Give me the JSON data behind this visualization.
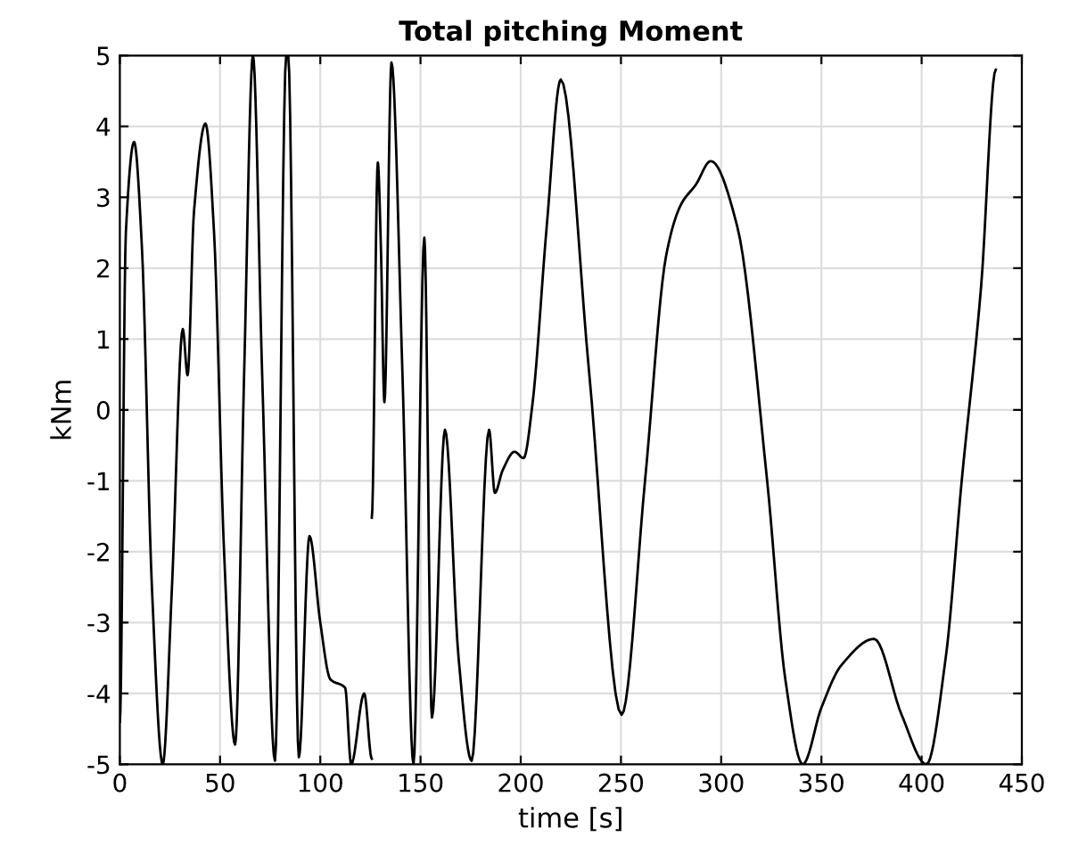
{
  "chart_data": {
    "type": "line",
    "title": "Total pitching Moment",
    "xlabel": "time [s]",
    "ylabel": "kNm",
    "xlim": [
      0,
      450
    ],
    "xticks": [
      0,
      50,
      100,
      150,
      200,
      250,
      300,
      350,
      400,
      450
    ],
    "ylim": [
      -5,
      5
    ],
    "yticks": [
      -5,
      -4,
      -3,
      -2,
      -1,
      0,
      1,
      2,
      3,
      4,
      5
    ],
    "grid": true,
    "series": [
      {
        "color": "#000000",
        "x": [
          0,
          3,
          7.1,
          11,
          16,
          21.4,
          26,
          31.4,
          33.8,
          37,
          42.7,
          47,
          52,
          57.5,
          62,
          66.4,
          71,
          77.4,
          83,
          84,
          89.3,
          94.6,
          100,
          105,
          112.4,
          115.4,
          121.9,
          125.7
        ],
        "values": [
          -4.4,
          2.5,
          3.78,
          2.3,
          -2.5,
          -5,
          -2.5,
          1.14,
          0.49,
          2.8,
          4.04,
          2.5,
          -2,
          -4.72,
          0.5,
          5,
          0.5,
          -4.95,
          5,
          5,
          -4.9,
          -1.78,
          -3,
          -3.8,
          -3.92,
          -5,
          -4.0,
          -4.92
        ]
      },
      {
        "color": "#000000",
        "x": [
          125.7,
          128.7,
          130.2,
          132,
          135.5,
          141,
          146.5,
          151.9,
          155.7,
          162.2,
          169,
          175.5,
          184.2,
          187.1,
          191,
          196.9,
          201.4,
          205.8,
          213,
          220,
          234,
          250.3,
          262,
          272.5,
          280,
          287.4,
          294.8,
          308,
          323,
          332,
          340.7,
          350,
          360,
          376.3,
          390,
          402.4,
          412,
          420,
          429.7,
          437
        ],
        "values": [
          -1.52,
          3.49,
          2.34,
          0.11,
          4.9,
          0.5,
          -5,
          2.43,
          -4.34,
          -0.28,
          -3.5,
          -4.95,
          -0.28,
          -1.17,
          -0.85,
          -0.59,
          -0.68,
          0.07,
          2.6,
          4.66,
          0.57,
          -4.3,
          -1,
          2.17,
          2.9,
          3.18,
          3.51,
          2.59,
          -1.02,
          -3.8,
          -5,
          -4.2,
          -3.6,
          -3.23,
          -4.3,
          -5,
          -3.5,
          -1,
          1.75,
          4.8
        ]
      }
    ]
  }
}
